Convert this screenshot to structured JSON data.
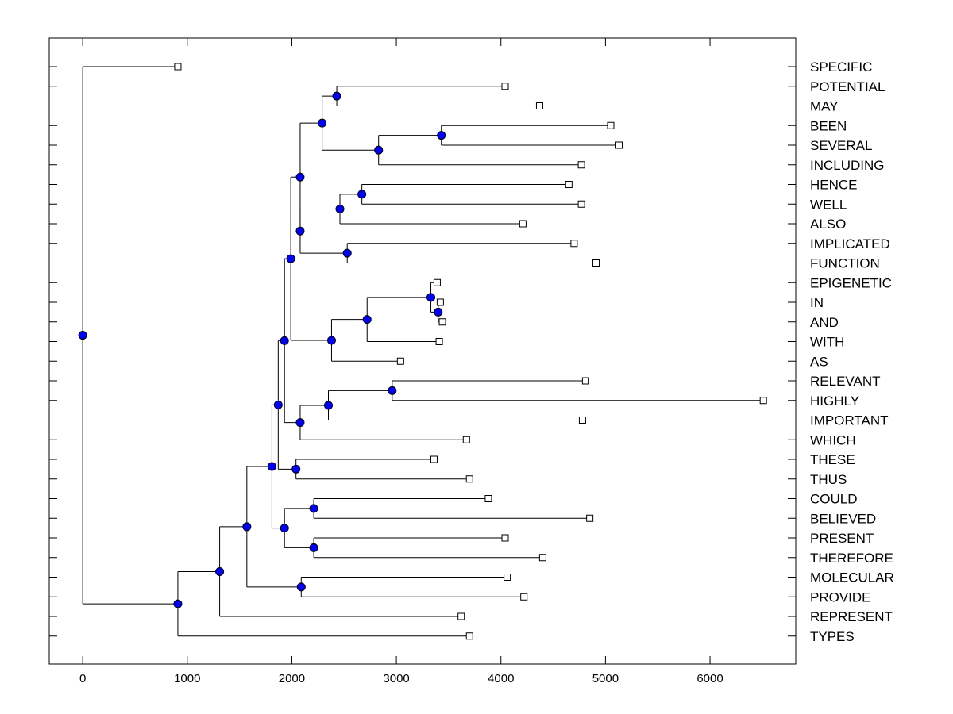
{
  "chart_data": {
    "type": "dendrogram",
    "title": "",
    "xlabel": "",
    "ylabel": "",
    "xlim": [
      -320,
      6820
    ],
    "xticks": [
      0,
      1000,
      2000,
      3000,
      4000,
      5000,
      6000
    ],
    "xtick_labels": [
      "0",
      "1000",
      "2000",
      "3000",
      "4000",
      "5000",
      "6000"
    ],
    "leaves": [
      {
        "label": "SPECIFIC",
        "value": 910
      },
      {
        "label": "POTENTIAL",
        "value": 4040
      },
      {
        "label": "MAY",
        "value": 4370
      },
      {
        "label": "BEEN",
        "value": 5050
      },
      {
        "label": "SEVERAL",
        "value": 5130
      },
      {
        "label": "INCLUDING",
        "value": 4770
      },
      {
        "label": "HENCE",
        "value": 4650
      },
      {
        "label": "WELL",
        "value": 4770
      },
      {
        "label": "ALSO",
        "value": 4210
      },
      {
        "label": "IMPLICATED",
        "value": 4700
      },
      {
        "label": "FUNCTION",
        "value": 4910
      },
      {
        "label": "EPIGENETIC",
        "value": 3390
      },
      {
        "label": "IN",
        "value": 3420
      },
      {
        "label": "AND",
        "value": 3440
      },
      {
        "label": "WITH",
        "value": 3410
      },
      {
        "label": "AS",
        "value": 3040
      },
      {
        "label": "RELEVANT",
        "value": 4810
      },
      {
        "label": "HIGHLY",
        "value": 6510
      },
      {
        "label": "IMPORTANT",
        "value": 4780
      },
      {
        "label": "WHICH",
        "value": 3670
      },
      {
        "label": "THESE",
        "value": 3360
      },
      {
        "label": "THUS",
        "value": 3700
      },
      {
        "label": "COULD",
        "value": 3880
      },
      {
        "label": "BELIEVED",
        "value": 4850
      },
      {
        "label": "PRESENT",
        "value": 4040
      },
      {
        "label": "THEREFORE",
        "value": 4400
      },
      {
        "label": "MOLECULAR",
        "value": 4060
      },
      {
        "label": "PROVIDE",
        "value": 4220
      },
      {
        "label": "REPRESENT",
        "value": 3620
      },
      {
        "label": "TYPES",
        "value": 3700
      }
    ],
    "merges": [
      {
        "id": "n1",
        "height": 3400,
        "children": [
          "IN",
          "AND"
        ]
      },
      {
        "id": "n2",
        "height": 3330,
        "children": [
          "EPIGENETIC",
          "n1"
        ]
      },
      {
        "id": "n3",
        "height": 2720,
        "children": [
          "n2",
          "WITH"
        ]
      },
      {
        "id": "n4",
        "height": 2380,
        "children": [
          "n3",
          "AS"
        ]
      },
      {
        "id": "n5",
        "height": 2430,
        "children": [
          "POTENTIAL",
          "MAY"
        ]
      },
      {
        "id": "n6",
        "height": 3430,
        "children": [
          "BEEN",
          "SEVERAL"
        ]
      },
      {
        "id": "n7",
        "height": 2830,
        "children": [
          "n6",
          "INCLUDING"
        ]
      },
      {
        "id": "n8",
        "height": 2290,
        "children": [
          "n5",
          "n7"
        ]
      },
      {
        "id": "n9",
        "height": 2670,
        "children": [
          "HENCE",
          "WELL"
        ]
      },
      {
        "id": "n10",
        "height": 2460,
        "children": [
          "n9",
          "ALSO"
        ]
      },
      {
        "id": "n11",
        "height": 2530,
        "children": [
          "IMPLICATED",
          "FUNCTION"
        ]
      },
      {
        "id": "n12",
        "height": 2080,
        "children": [
          "n10",
          "n11"
        ]
      },
      {
        "id": "n13",
        "height": 2080,
        "children": [
          "n8",
          "n12"
        ]
      },
      {
        "id": "n14",
        "height": 1990,
        "children": [
          "n13",
          "n4"
        ]
      },
      {
        "id": "n15",
        "height": 2960,
        "children": [
          "RELEVANT",
          "HIGHLY"
        ]
      },
      {
        "id": "n16",
        "height": 2350,
        "children": [
          "n15",
          "IMPORTANT"
        ]
      },
      {
        "id": "n17",
        "height": 2080,
        "children": [
          "n16",
          "WHICH"
        ]
      },
      {
        "id": "n18",
        "height": 1930,
        "children": [
          "n14",
          "n17"
        ]
      },
      {
        "id": "n19",
        "height": 2040,
        "children": [
          "THESE",
          "THUS"
        ]
      },
      {
        "id": "n20",
        "height": 1870,
        "children": [
          "n18",
          "n19"
        ]
      },
      {
        "id": "n21",
        "height": 2210,
        "children": [
          "COULD",
          "BELIEVED"
        ]
      },
      {
        "id": "n22",
        "height": 2210,
        "children": [
          "PRESENT",
          "THEREFORE"
        ]
      },
      {
        "id": "n23",
        "height": 1930,
        "children": [
          "n21",
          "n22"
        ]
      },
      {
        "id": "n24",
        "height": 1810,
        "children": [
          "n20",
          "n23"
        ]
      },
      {
        "id": "n25",
        "height": 2090,
        "children": [
          "MOLECULAR",
          "PROVIDE"
        ]
      },
      {
        "id": "n26",
        "height": 1570,
        "children": [
          "n24",
          "n25"
        ]
      },
      {
        "id": "n27",
        "height": 1310,
        "children": [
          "n26",
          "REPRESENT"
        ]
      },
      {
        "id": "n28",
        "height": 910,
        "children": [
          "n27",
          "TYPES"
        ]
      },
      {
        "id": "n29",
        "height": 0,
        "children": [
          "SPECIFIC",
          "n28"
        ]
      }
    ],
    "legend": "none",
    "grid": false
  }
}
